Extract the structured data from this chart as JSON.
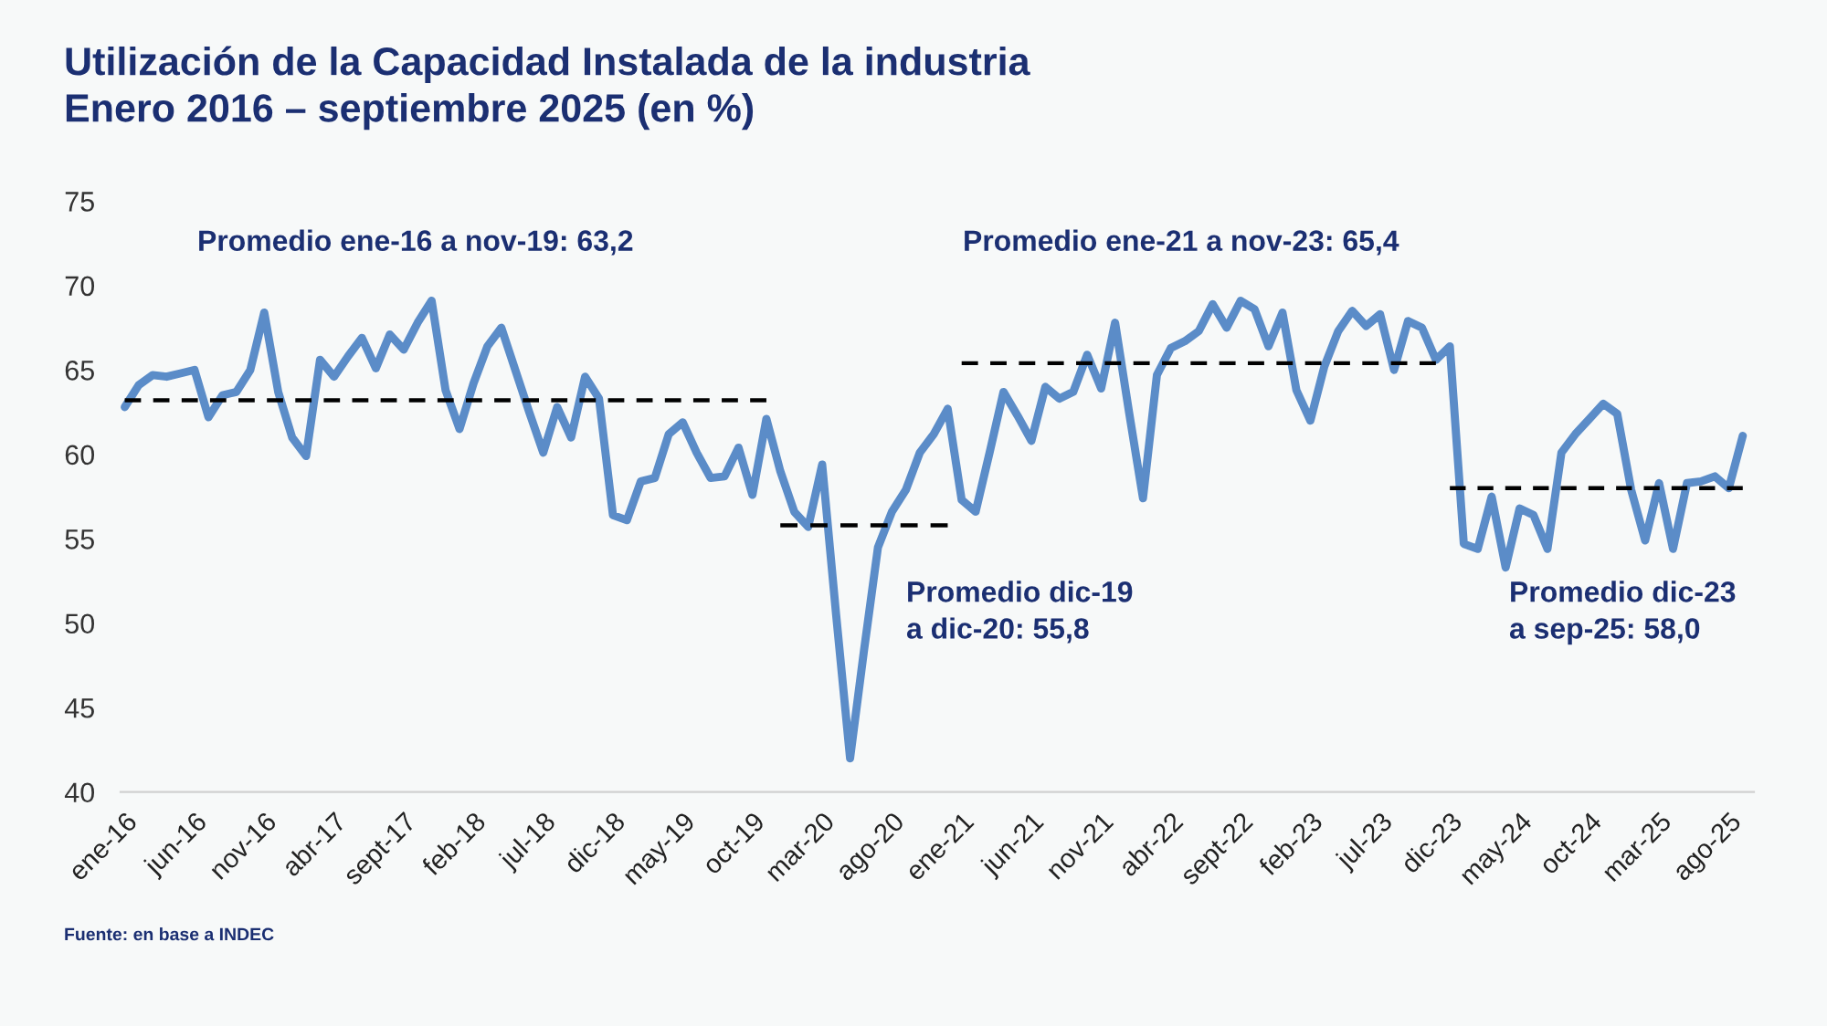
{
  "chart_data": {
    "type": "line",
    "title": "Utilización de la Capacidad Instalada de la industria\nEnero 2016 – septiembre 2025 (en %)",
    "categories": [
      "ene-16",
      null,
      null,
      null,
      null,
      "jun-16",
      null,
      null,
      null,
      null,
      "nov-16",
      null,
      null,
      null,
      null,
      "abr-17",
      null,
      null,
      null,
      null,
      "sept-17",
      null,
      null,
      null,
      null,
      "feb-18",
      null,
      null,
      null,
      null,
      "jul-18",
      null,
      null,
      null,
      null,
      "dic-18",
      null,
      null,
      null,
      null,
      "may-19",
      null,
      null,
      null,
      null,
      "oct-19",
      null,
      null,
      null,
      null,
      "mar-20",
      null,
      null,
      null,
      null,
      "ago-20",
      null,
      null,
      null,
      null,
      "ene-21",
      null,
      null,
      null,
      null,
      "jun-21",
      null,
      null,
      null,
      null,
      "nov-21",
      null,
      null,
      null,
      null,
      "abr-22",
      null,
      null,
      null,
      null,
      "sept-22",
      null,
      null,
      null,
      null,
      "feb-23",
      null,
      null,
      null,
      null,
      "jul-23",
      null,
      null,
      null,
      null,
      "dic-23",
      null,
      null,
      null,
      null,
      "may-24",
      null,
      null,
      null,
      null,
      "oct-24",
      null,
      null,
      null,
      null,
      "mar-25",
      null,
      null,
      null,
      null,
      "ago-25",
      null
    ],
    "series": [
      {
        "color": "#5b8cc8",
        "line_style": "solid",
        "values": [
          62.8,
          64.1,
          64.7,
          64.6,
          64.8,
          65.0,
          62.2,
          63.5,
          63.7,
          65.0,
          68.4,
          63.7,
          61.0,
          59.9,
          65.6,
          64.6,
          65.8,
          66.9,
          65.1,
          67.1,
          66.2,
          67.8,
          69.1,
          63.8,
          61.5,
          64.2,
          66.4,
          67.5,
          65.0,
          62.5,
          60.1,
          62.8,
          61.0,
          64.6,
          63.3,
          56.4,
          56.1,
          58.4,
          58.6,
          61.2,
          61.9,
          60.1,
          58.6,
          58.7,
          60.4,
          57.6,
          62.1,
          59.0,
          56.6,
          55.7,
          59.4,
          50.5,
          42.0,
          48.4,
          54.5,
          56.6,
          57.9,
          60.1,
          61.2,
          62.7,
          57.3,
          56.6,
          60.1,
          63.7,
          62.3,
          60.8,
          64.0,
          63.3,
          63.7,
          65.9,
          63.9,
          67.8,
          62.5,
          57.4,
          64.7,
          66.3,
          66.7,
          67.3,
          68.9,
          67.5,
          69.1,
          68.6,
          66.4,
          68.4,
          63.8,
          62.0,
          65.2,
          67.3,
          68.5,
          67.6,
          68.3,
          65.0,
          67.9,
          67.5,
          65.6,
          66.4,
          54.7,
          54.4,
          57.5,
          53.3,
          56.8,
          56.4,
          54.4,
          60.1,
          61.2,
          62.1,
          63.0,
          62.4,
          57.9,
          54.9,
          58.3,
          54.4,
          58.3,
          58.4,
          58.7,
          58.0,
          61.1
        ]
      },
      {
        "color": "#000000",
        "line_style": "dashed",
        "values": [
          63.2,
          63.2,
          63.2,
          63.2,
          63.2,
          63.2,
          63.2,
          63.2,
          63.2,
          63.2,
          63.2,
          63.2,
          63.2,
          63.2,
          63.2,
          63.2,
          63.2,
          63.2,
          63.2,
          63.2,
          63.2,
          63.2,
          63.2,
          63.2,
          63.2,
          63.2,
          63.2,
          63.2,
          63.2,
          63.2,
          63.2,
          63.2,
          63.2,
          63.2,
          63.2,
          63.2,
          63.2,
          63.2,
          63.2,
          63.2,
          63.2,
          63.2,
          63.2,
          63.2,
          63.2,
          63.2,
          63.2,
          null,
          null,
          null,
          null,
          null,
          null,
          null,
          null,
          null,
          null,
          null,
          null,
          null,
          null,
          null,
          null,
          null,
          null,
          null,
          null,
          null,
          null,
          null,
          null,
          null,
          null,
          null,
          null,
          null,
          null,
          null,
          null,
          null,
          null,
          null,
          null,
          null,
          null,
          null,
          null,
          null,
          null,
          null,
          null,
          null,
          null,
          null,
          null,
          null,
          null,
          null,
          null,
          null,
          null,
          null,
          null,
          null,
          null,
          null,
          null,
          null,
          null,
          null,
          null,
          null,
          null,
          null,
          null,
          null,
          null
        ]
      },
      {
        "color": "#000000",
        "line_style": "dashed",
        "values": [
          null,
          null,
          null,
          null,
          null,
          null,
          null,
          null,
          null,
          null,
          null,
          null,
          null,
          null,
          null,
          null,
          null,
          null,
          null,
          null,
          null,
          null,
          null,
          null,
          null,
          null,
          null,
          null,
          null,
          null,
          null,
          null,
          null,
          null,
          null,
          null,
          null,
          null,
          null,
          null,
          null,
          null,
          null,
          null,
          null,
          null,
          null,
          55.8,
          55.8,
          55.8,
          55.8,
          55.8,
          55.8,
          55.8,
          55.8,
          55.8,
          55.8,
          55.8,
          55.8,
          55.8,
          null,
          null,
          null,
          null,
          null,
          null,
          null,
          null,
          null,
          null,
          null,
          null,
          null,
          null,
          null,
          null,
          null,
          null,
          null,
          null,
          null,
          null,
          null,
          null,
          null,
          null,
          null,
          null,
          null,
          null,
          null,
          null,
          null,
          null,
          null,
          null,
          null,
          null,
          null,
          null,
          null,
          null,
          null,
          null,
          null,
          null,
          null,
          null,
          null,
          null,
          null,
          null,
          null,
          null,
          null,
          null,
          null
        ]
      },
      {
        "color": "#000000",
        "line_style": "dashed",
        "values": [
          null,
          null,
          null,
          null,
          null,
          null,
          null,
          null,
          null,
          null,
          null,
          null,
          null,
          null,
          null,
          null,
          null,
          null,
          null,
          null,
          null,
          null,
          null,
          null,
          null,
          null,
          null,
          null,
          null,
          null,
          null,
          null,
          null,
          null,
          null,
          null,
          null,
          null,
          null,
          null,
          null,
          null,
          null,
          null,
          null,
          null,
          null,
          null,
          null,
          null,
          null,
          null,
          null,
          null,
          null,
          null,
          null,
          null,
          null,
          null,
          65.4,
          65.4,
          65.4,
          65.4,
          65.4,
          65.4,
          65.4,
          65.4,
          65.4,
          65.4,
          65.4,
          65.4,
          65.4,
          65.4,
          65.4,
          65.4,
          65.4,
          65.4,
          65.4,
          65.4,
          65.4,
          65.4,
          65.4,
          65.4,
          65.4,
          65.4,
          65.4,
          65.4,
          65.4,
          65.4,
          65.4,
          65.4,
          65.4,
          65.4,
          65.4,
          null,
          null,
          null,
          null,
          null,
          null,
          null,
          null,
          null,
          null,
          null,
          null,
          null,
          null,
          null,
          null,
          null,
          null,
          null,
          null,
          null,
          null
        ]
      },
      {
        "color": "#000000",
        "line_style": "dashed",
        "values": [
          null,
          null,
          null,
          null,
          null,
          null,
          null,
          null,
          null,
          null,
          null,
          null,
          null,
          null,
          null,
          null,
          null,
          null,
          null,
          null,
          null,
          null,
          null,
          null,
          null,
          null,
          null,
          null,
          null,
          null,
          null,
          null,
          null,
          null,
          null,
          null,
          null,
          null,
          null,
          null,
          null,
          null,
          null,
          null,
          null,
          null,
          null,
          null,
          null,
          null,
          null,
          null,
          null,
          null,
          null,
          null,
          null,
          null,
          null,
          null,
          null,
          null,
          null,
          null,
          null,
          null,
          null,
          null,
          null,
          null,
          null,
          null,
          null,
          null,
          null,
          null,
          null,
          null,
          null,
          null,
          null,
          null,
          null,
          null,
          null,
          null,
          null,
          null,
          null,
          null,
          null,
          null,
          null,
          null,
          null,
          58.0,
          58.0,
          58.0,
          58.0,
          58.0,
          58.0,
          58.0,
          58.0,
          58.0,
          58.0,
          58.0,
          58.0,
          58.0,
          58.0,
          58.0,
          58.0,
          58.0,
          58.0,
          58.0,
          58.0,
          58.0,
          58.0
        ]
      }
    ],
    "ylim": [
      40,
      75
    ],
    "yticks": [
      40,
      45,
      50,
      55,
      60,
      65,
      70,
      75
    ],
    "grid": false,
    "legend": false,
    "annotations": [
      "Promedio ene-16 a nov-19: 63,2",
      "Promedio ene-21 a nov-23: 65,4",
      "Promedio dic-19\na dic-20: 55,8",
      "Promedio dic-23\na sep-25: 58,0",
      "Fuente: en base a INDEC"
    ]
  }
}
